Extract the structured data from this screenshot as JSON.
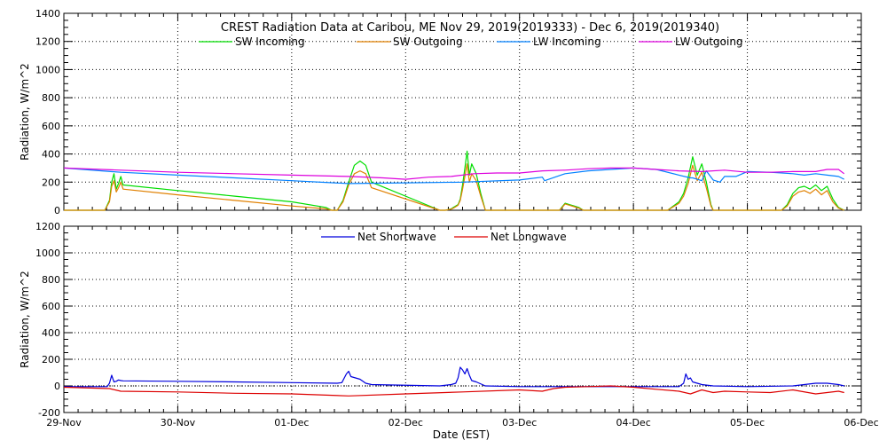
{
  "chart_data": [
    {
      "type": "line",
      "title": "CREST Radiation Data at Caribou, ME   Nov 29, 2019(2019333) - Dec  6, 2019(2019340)",
      "ylabel": "Radiation, W/m^2",
      "xlabel": "",
      "xlim": [
        0,
        7
      ],
      "ylim": [
        0,
        1400
      ],
      "yticks": [
        0,
        200,
        400,
        600,
        800,
        1000,
        1200,
        1400
      ],
      "grid": true,
      "legend_position": "top",
      "series": [
        {
          "name": "SW Incoming",
          "color": "#00dd00",
          "x": [
            0.0,
            0.36,
            0.4,
            0.42,
            0.44,
            0.46,
            0.48,
            0.5,
            0.52,
            1.0,
            1.5,
            2.0,
            2.3,
            2.35,
            2.4,
            2.45,
            2.5,
            2.55,
            2.6,
            2.65,
            2.7,
            3.3,
            3.35,
            3.4,
            3.42,
            3.44,
            3.46,
            3.48,
            3.5,
            3.52,
            3.54,
            3.56,
            3.58,
            3.62,
            3.66,
            3.7,
            4.0,
            4.35,
            4.38,
            4.4,
            4.44,
            4.48,
            4.52,
            4.56,
            4.6,
            4.7,
            5.0,
            5.3,
            5.4,
            5.44,
            5.48,
            5.52,
            5.56,
            5.6,
            5.64,
            5.68,
            5.7,
            6.0,
            6.3,
            6.35,
            6.4,
            6.45,
            6.5,
            6.55,
            6.6,
            6.65,
            6.7,
            6.75,
            6.8,
            6.85
          ],
          "y": [
            0,
            0,
            70,
            200,
            260,
            150,
            190,
            240,
            180,
            140,
            100,
            60,
            20,
            0,
            0,
            70,
            200,
            320,
            350,
            320,
            200,
            0,
            0,
            10,
            20,
            30,
            40,
            80,
            180,
            300,
            420,
            250,
            330,
            260,
            120,
            0,
            0,
            0,
            30,
            50,
            40,
            30,
            20,
            0,
            0,
            0,
            0,
            0,
            60,
            120,
            230,
            380,
            250,
            330,
            200,
            40,
            0,
            0,
            0,
            40,
            120,
            160,
            170,
            150,
            180,
            140,
            170,
            80,
            20,
            0
          ]
        },
        {
          "name": "SW Outgoing",
          "color": "#e08000",
          "x": [
            0.0,
            0.36,
            0.4,
            0.42,
            0.44,
            0.46,
            0.48,
            0.5,
            0.52,
            1.0,
            1.5,
            2.0,
            2.3,
            2.35,
            2.4,
            2.45,
            2.5,
            2.55,
            2.6,
            2.65,
            2.7,
            3.3,
            3.35,
            3.4,
            3.42,
            3.44,
            3.46,
            3.48,
            3.5,
            3.52,
            3.54,
            3.56,
            3.58,
            3.62,
            3.66,
            3.7,
            4.0,
            4.35,
            4.38,
            4.4,
            4.44,
            4.48,
            4.52,
            4.56,
            4.6,
            4.7,
            5.0,
            5.3,
            5.4,
            5.44,
            5.48,
            5.52,
            5.56,
            5.6,
            5.64,
            5.68,
            5.7,
            6.0,
            6.3,
            6.35,
            6.4,
            6.45,
            6.5,
            6.55,
            6.6,
            6.65,
            6.7,
            6.75,
            6.8,
            6.85
          ],
          "y": [
            0,
            0,
            60,
            170,
            210,
            130,
            160,
            200,
            150,
            110,
            70,
            30,
            10,
            0,
            0,
            60,
            180,
            260,
            280,
            260,
            160,
            0,
            0,
            8,
            15,
            25,
            35,
            70,
            150,
            240,
            330,
            200,
            260,
            210,
            100,
            0,
            0,
            0,
            25,
            45,
            35,
            25,
            15,
            0,
            0,
            0,
            0,
            0,
            50,
            100,
            190,
            320,
            210,
            270,
            160,
            30,
            0,
            0,
            0,
            30,
            100,
            130,
            140,
            120,
            150,
            110,
            140,
            60,
            15,
            0
          ]
        },
        {
          "name": "LW Incoming",
          "color": "#0080ff",
          "x": [
            0.0,
            0.5,
            1.0,
            1.5,
            2.0,
            2.5,
            3.0,
            3.5,
            4.0,
            4.2,
            4.22,
            4.4,
            4.6,
            4.8,
            5.0,
            5.2,
            5.4,
            5.5,
            5.52,
            5.6,
            5.64,
            5.7,
            5.76,
            5.8,
            5.9,
            6.0,
            6.2,
            6.4,
            6.5,
            6.6,
            6.7,
            6.8,
            6.85
          ],
          "y": [
            300,
            270,
            250,
            230,
            210,
            190,
            195,
            200,
            215,
            235,
            210,
            260,
            280,
            290,
            300,
            290,
            250,
            230,
            230,
            210,
            280,
            215,
            200,
            240,
            240,
            275,
            270,
            260,
            250,
            260,
            250,
            240,
            220
          ]
        },
        {
          "name": "LW Outgoing",
          "color": "#dd00dd",
          "x": [
            0.0,
            0.5,
            1.0,
            1.5,
            2.0,
            2.5,
            2.8,
            3.0,
            3.2,
            3.4,
            3.6,
            3.8,
            4.0,
            4.2,
            4.4,
            4.6,
            4.8,
            5.0,
            5.2,
            5.4,
            5.6,
            5.8,
            6.0,
            6.2,
            6.4,
            6.6,
            6.7,
            6.8,
            6.85
          ],
          "y": [
            300,
            285,
            270,
            260,
            250,
            240,
            230,
            220,
            235,
            240,
            260,
            265,
            265,
            280,
            285,
            295,
            300,
            300,
            290,
            280,
            275,
            285,
            270,
            270,
            275,
            275,
            290,
            290,
            260
          ]
        }
      ],
      "legend": [
        "SW Incoming",
        "SW Outgoing",
        "LW Incoming",
        "LW Outgoing"
      ]
    },
    {
      "type": "line",
      "title": "",
      "ylabel": "Radiation, W/m^2",
      "xlabel": "Date (EST)",
      "xlim": [
        0,
        7
      ],
      "ylim": [
        -200,
        1200
      ],
      "yticks": [
        -200,
        0,
        200,
        400,
        600,
        800,
        1000,
        1200
      ],
      "xticks": [
        "29-Nov",
        "30-Nov",
        "01-Dec",
        "02-Dec",
        "03-Dec",
        "04-Dec",
        "05-Dec",
        "06-Dec"
      ],
      "grid": true,
      "legend_position": "top",
      "series": [
        {
          "name": "Net Shortwave",
          "color": "#0000dd",
          "x": [
            0.0,
            0.38,
            0.4,
            0.42,
            0.44,
            0.46,
            0.48,
            0.5,
            0.52,
            1.0,
            1.5,
            2.0,
            2.4,
            2.44,
            2.48,
            2.5,
            2.52,
            2.56,
            2.6,
            2.65,
            2.7,
            3.3,
            3.4,
            3.44,
            3.46,
            3.48,
            3.5,
            3.52,
            3.54,
            3.56,
            3.58,
            3.62,
            3.7,
            4.0,
            4.4,
            4.5,
            4.6,
            4.7,
            5.0,
            5.4,
            5.44,
            5.46,
            5.48,
            5.5,
            5.52,
            5.56,
            5.6,
            5.7,
            6.0,
            6.4,
            6.5,
            6.6,
            6.7,
            6.8,
            6.85
          ],
          "y": [
            -5,
            -5,
            20,
            80,
            30,
            35,
            45,
            40,
            38,
            35,
            30,
            25,
            20,
            25,
            90,
            110,
            70,
            60,
            50,
            20,
            10,
            0,
            10,
            20,
            60,
            140,
            120,
            90,
            130,
            80,
            40,
            30,
            0,
            -5,
            -5,
            -5,
            -5,
            -5,
            -5,
            -5,
            20,
            90,
            50,
            60,
            30,
            20,
            10,
            0,
            -5,
            0,
            10,
            20,
            20,
            10,
            0
          ]
        },
        {
          "name": "Net Longwave",
          "color": "#dd0000",
          "x": [
            0.0,
            0.4,
            0.5,
            1.0,
            1.5,
            2.0,
            2.5,
            3.0,
            3.5,
            4.0,
            4.2,
            4.3,
            4.4,
            4.6,
            4.8,
            5.0,
            5.2,
            5.4,
            5.5,
            5.6,
            5.7,
            5.8,
            6.0,
            6.2,
            6.4,
            6.6,
            6.8,
            6.85
          ],
          "y": [
            -10,
            -20,
            -40,
            -45,
            -55,
            -60,
            -75,
            -60,
            -45,
            -30,
            -40,
            -20,
            -10,
            -5,
            0,
            -10,
            -25,
            -40,
            -60,
            -30,
            -50,
            -40,
            -45,
            -50,
            -30,
            -60,
            -40,
            -50
          ]
        }
      ],
      "legend": [
        "Net Shortwave",
        "Net Longwave"
      ]
    }
  ]
}
